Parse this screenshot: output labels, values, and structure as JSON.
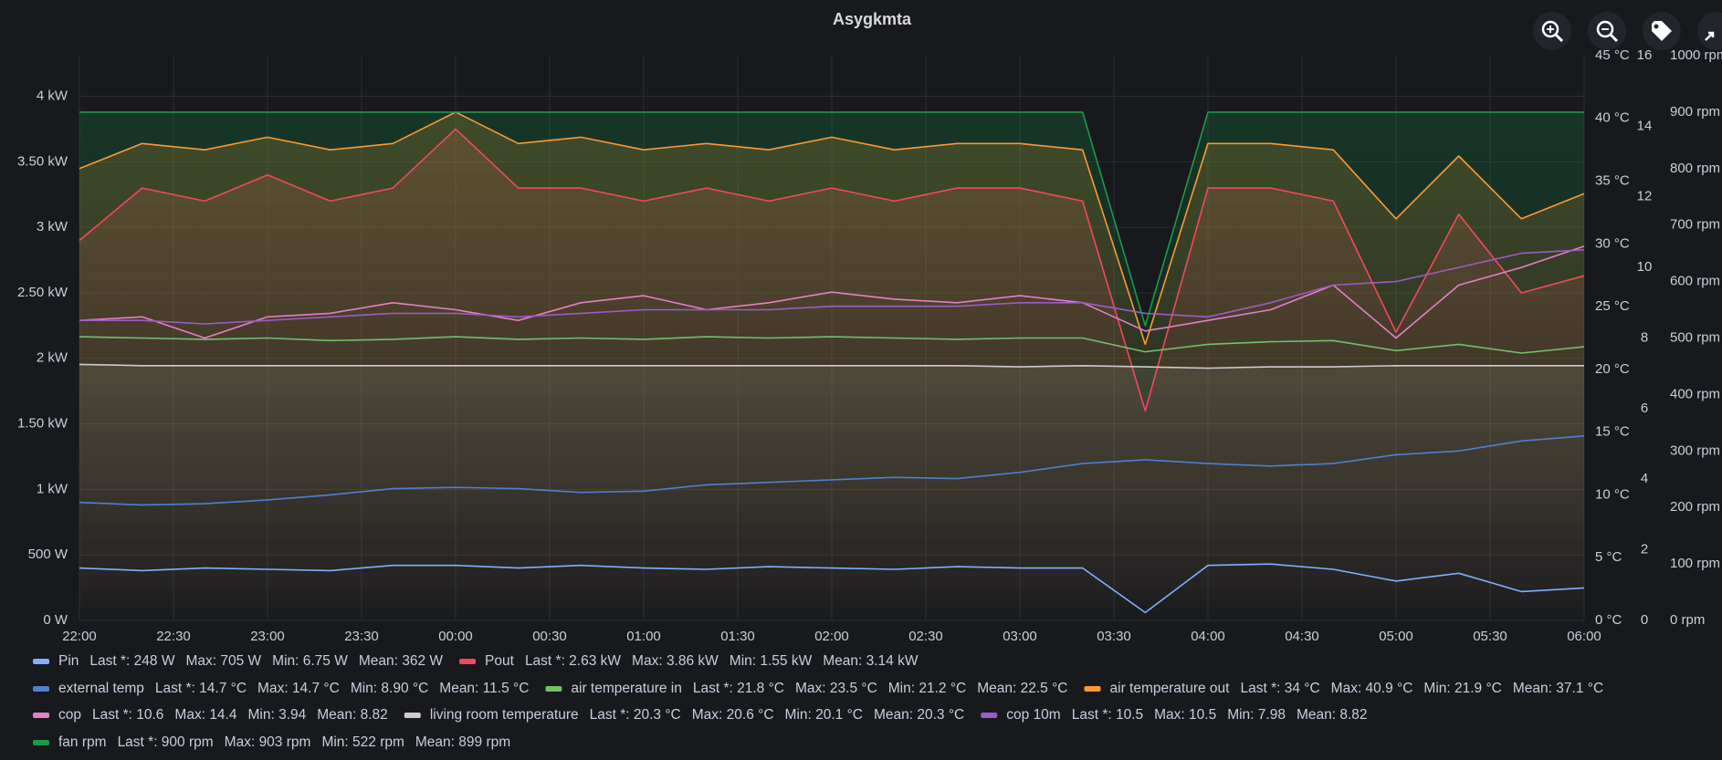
{
  "chart_data": {
    "type": "line",
    "title": "Asygkmta",
    "x": [
      "22:00",
      "22:20",
      "22:40",
      "23:00",
      "23:20",
      "23:40",
      "00:00",
      "00:20",
      "00:40",
      "01:00",
      "01:20",
      "01:40",
      "02:00",
      "02:20",
      "02:40",
      "03:00",
      "03:20",
      "03:40",
      "04:00",
      "04:20",
      "04:40",
      "05:00",
      "05:20",
      "05:40",
      "06:00"
    ],
    "xlim": [
      "22:00",
      "06:00"
    ],
    "xticks": [
      "22:00",
      "22:30",
      "23:00",
      "23:30",
      "00:00",
      "00:30",
      "01:00",
      "01:30",
      "02:00",
      "02:30",
      "03:00",
      "03:30",
      "04:00",
      "04:30",
      "05:00",
      "05:30",
      "06:00"
    ],
    "ylim": [
      0,
      4310
    ],
    "yticks": [
      {
        "value": 0,
        "label": "0 W"
      },
      {
        "value": 500,
        "label": "500 W"
      },
      {
        "value": 1000,
        "label": "1 kW"
      },
      {
        "value": 1500,
        "label": "1.50 kW"
      },
      {
        "value": 2000,
        "label": "2 kW"
      },
      {
        "value": 2500,
        "label": "2.50 kW"
      },
      {
        "value": 3000,
        "label": "3 kW"
      },
      {
        "value": 3500,
        "label": "3.50 kW"
      },
      {
        "value": 4000,
        "label": "4 kW"
      }
    ],
    "y2lim": [
      0,
      45
    ],
    "y2ticks": [
      {
        "value": 0,
        "label": "0 °C"
      },
      {
        "value": 5,
        "label": "5 °C"
      },
      {
        "value": 10,
        "label": "10 °C"
      },
      {
        "value": 15,
        "label": "15 °C"
      },
      {
        "value": 20,
        "label": "20 °C"
      },
      {
        "value": 25,
        "label": "25 °C"
      },
      {
        "value": 30,
        "label": "30 °C"
      },
      {
        "value": 35,
        "label": "35 °C"
      },
      {
        "value": 40,
        "label": "40 °C"
      },
      {
        "value": 45,
        "label": "45 °C"
      }
    ],
    "y3lim": [
      0,
      16
    ],
    "y3ticks": [
      0,
      2,
      4,
      6,
      8,
      10,
      12,
      14,
      16
    ],
    "y4lim": [
      0,
      1000
    ],
    "y4ticks": [
      {
        "value": 0,
        "label": "0 rpm"
      },
      {
        "value": 100,
        "label": "100 rpm"
      },
      {
        "value": 200,
        "label": "200 rpm"
      },
      {
        "value": 300,
        "label": "300 rpm"
      },
      {
        "value": 400,
        "label": "400 rpm"
      },
      {
        "value": 500,
        "label": "500 rpm"
      },
      {
        "value": 600,
        "label": "600 rpm"
      },
      {
        "value": 700,
        "label": "700 rpm"
      },
      {
        "value": 800,
        "label": "800 rpm"
      },
      {
        "value": 900,
        "label": "900 rpm"
      },
      {
        "value": 1000,
        "label": "1000 rpm"
      }
    ],
    "grid": true,
    "series": [
      {
        "name": "Pin",
        "color": "#7eb0ff",
        "axis": "y",
        "fill": false,
        "stats": [
          "Last *: 248 W",
          "Max: 705 W",
          "Min: 6.75 W",
          "Mean: 362 W"
        ],
        "values": [
          400,
          380,
          400,
          390,
          380,
          420,
          420,
          400,
          420,
          400,
          390,
          410,
          400,
          390,
          410,
          400,
          400,
          60,
          420,
          430,
          390,
          300,
          360,
          220,
          248
        ]
      },
      {
        "name": "Pout",
        "color": "#f2495c",
        "axis": "y",
        "fill": true,
        "stats": [
          "Last *: 2.63 kW",
          "Max: 3.86 kW",
          "Min: 1.55 kW",
          "Mean: 3.14 kW"
        ],
        "values": [
          2900,
          3300,
          3200,
          3400,
          3200,
          3300,
          3750,
          3300,
          3300,
          3200,
          3300,
          3200,
          3300,
          3200,
          3300,
          3300,
          3200,
          1600,
          3300,
          3300,
          3200,
          2200,
          3100,
          2500,
          2630
        ]
      },
      {
        "name": "external temp",
        "color": "#4f7fd0",
        "axis": "y2",
        "fill": false,
        "stats": [
          "Last *: 14.7 °C",
          "Max: 14.7 °C",
          "Min: 8.90 °C",
          "Mean: 11.5 °C"
        ],
        "values": [
          9.4,
          9.2,
          9.3,
          9.6,
          10.0,
          10.5,
          10.6,
          10.5,
          10.2,
          10.3,
          10.8,
          11.0,
          11.2,
          11.4,
          11.3,
          11.8,
          12.5,
          12.8,
          12.5,
          12.3,
          12.5,
          13.2,
          13.5,
          14.3,
          14.7
        ]
      },
      {
        "name": "air temperature in",
        "color": "#73bf69",
        "axis": "y2",
        "fill": false,
        "stats": [
          "Last *: 21.8 °C",
          "Max: 23.5 °C",
          "Min: 21.2 °C",
          "Mean: 22.5 °C"
        ],
        "values": [
          22.6,
          22.5,
          22.4,
          22.5,
          22.3,
          22.4,
          22.6,
          22.4,
          22.5,
          22.4,
          22.6,
          22.5,
          22.6,
          22.5,
          22.4,
          22.5,
          22.5,
          21.4,
          22.0,
          22.2,
          22.3,
          21.5,
          22.0,
          21.3,
          21.8
        ]
      },
      {
        "name": "air temperature out",
        "color": "#ff9830",
        "axis": "y2",
        "fill": true,
        "stats": [
          "Last *: 34 °C",
          "Max: 40.9 °C",
          "Min: 21.9 °C",
          "Mean: 37.1 °C"
        ],
        "values": [
          36,
          38,
          37.5,
          38.5,
          37.5,
          38,
          40.5,
          38,
          38.5,
          37.5,
          38,
          37.5,
          38.5,
          37.5,
          38,
          38,
          37.5,
          22,
          38,
          38,
          37.5,
          32,
          37,
          32,
          34
        ]
      },
      {
        "name": "cop",
        "color": "#e67fc8",
        "axis": "y3",
        "fill": false,
        "stats": [
          "Last *: 10.6",
          "Max: 14.4",
          "Min: 3.94",
          "Mean: 8.82"
        ],
        "values": [
          8.5,
          8.6,
          8.0,
          8.6,
          8.7,
          9.0,
          8.8,
          8.5,
          9.0,
          9.2,
          8.8,
          9.0,
          9.3,
          9.1,
          9.0,
          9.2,
          9.0,
          8.2,
          8.5,
          8.8,
          9.5,
          8.0,
          9.5,
          10.0,
          10.6
        ]
      },
      {
        "name": "living room temperature",
        "color": "#cccccc",
        "axis": "y2",
        "fill": true,
        "stats": [
          "Last *: 20.3 °C",
          "Max: 20.6 °C",
          "Min: 20.1 °C",
          "Mean: 20.3 °C"
        ],
        "values": [
          20.4,
          20.3,
          20.3,
          20.3,
          20.3,
          20.3,
          20.3,
          20.3,
          20.3,
          20.3,
          20.3,
          20.3,
          20.3,
          20.3,
          20.3,
          20.2,
          20.3,
          20.2,
          20.1,
          20.2,
          20.2,
          20.3,
          20.3,
          20.3,
          20.3
        ]
      },
      {
        "name": "cop 10m",
        "color": "#9b5cc4",
        "axis": "y3",
        "fill": false,
        "stats": [
          "Last *: 10.5",
          "Max: 10.5",
          "Min: 7.98",
          "Mean: 8.82"
        ],
        "values": [
          8.5,
          8.5,
          8.4,
          8.5,
          8.6,
          8.7,
          8.7,
          8.6,
          8.7,
          8.8,
          8.8,
          8.8,
          8.9,
          8.9,
          8.9,
          9.0,
          9.0,
          8.7,
          8.6,
          9.0,
          9.5,
          9.6,
          10.0,
          10.4,
          10.5
        ]
      },
      {
        "name": "fan rpm",
        "color": "#1a9a4a",
        "axis": "y4",
        "fill": true,
        "stats": [
          "Last *: 900 rpm",
          "Max: 903 rpm",
          "Min: 522 rpm",
          "Mean: 899 rpm"
        ],
        "values": [
          900,
          900,
          900,
          900,
          900,
          900,
          900,
          900,
          900,
          900,
          900,
          900,
          900,
          900,
          900,
          900,
          900,
          522,
          900,
          900,
          900,
          900,
          900,
          900,
          900
        ]
      }
    ]
  }
}
